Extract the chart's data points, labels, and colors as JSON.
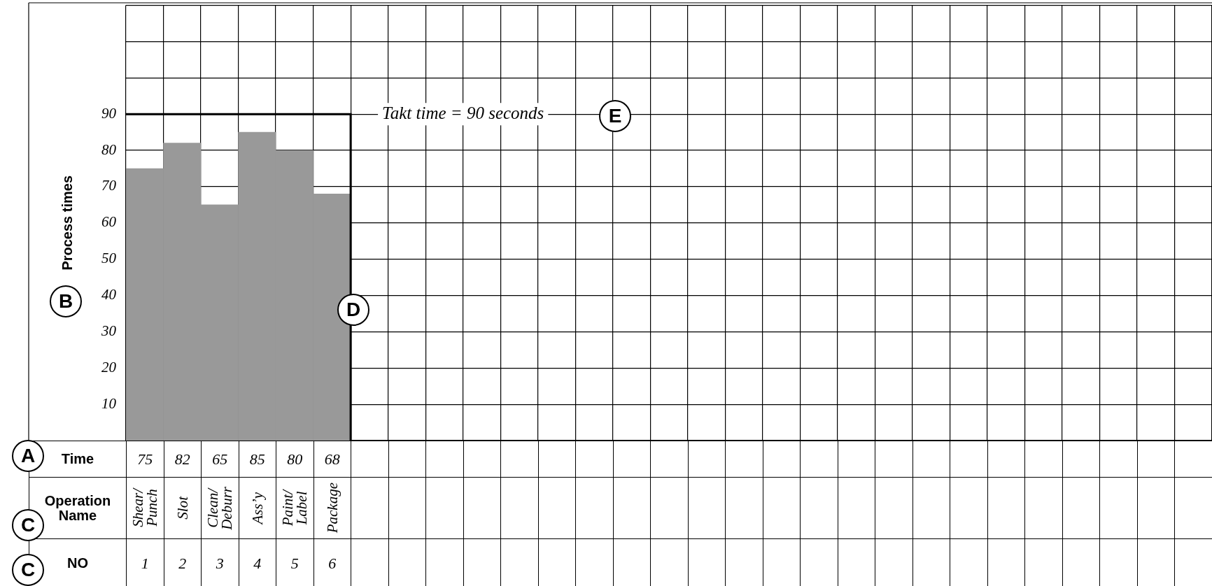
{
  "chart_data": {
    "type": "bar",
    "ylabel": "Process times",
    "categories": [
      "Shear/ Punch",
      "Slot",
      "Clean/ Deburr",
      "Ass’y",
      "Paint/ Label",
      "Package",
      null,
      null,
      null,
      null,
      null,
      null,
      null,
      null,
      null,
      null,
      null,
      null,
      null,
      null,
      null,
      null,
      null,
      null,
      null,
      null,
      null,
      null,
      null
    ],
    "values": [
      75,
      82,
      65,
      85,
      80,
      68,
      null,
      null,
      null,
      null,
      null,
      null,
      null,
      null,
      null,
      null,
      null,
      null,
      null,
      null,
      null,
      null,
      null,
      null,
      null,
      null,
      null,
      null,
      null
    ],
    "color": "#999999",
    "ylim": [
      0,
      120
    ],
    "yticks": [
      10,
      20,
      30,
      40,
      50,
      60,
      70,
      80,
      90,
      {
        "value": 100,
        "label": null
      },
      {
        "value": 110,
        "label": null
      },
      {
        "value": 120,
        "label": null
      }
    ],
    "grid": true,
    "legend": false,
    "data_labels": true,
    "ref_lines": [
      {
        "axis": "y",
        "value": 90,
        "label": "Takt time = 90 seconds",
        "color": "#000000"
      }
    ],
    "annotations": [
      "Time",
      "Operation Name",
      "NO",
      "1",
      "2",
      "3",
      "4",
      "5",
      "6",
      "A",
      "B",
      "C",
      "C",
      "D",
      "E"
    ]
  }
}
